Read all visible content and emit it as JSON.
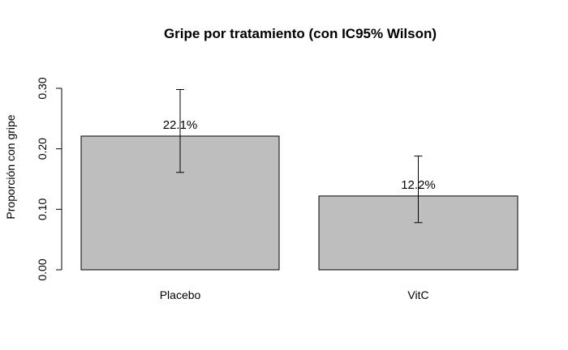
{
  "chart_data": {
    "type": "bar",
    "title": "Gripe por tratamiento (con IC95% Wilson)",
    "xlabel": "",
    "ylabel": "Proporción con gripe",
    "ylim": [
      0,
      0.3
    ],
    "yticks": [
      0.0,
      0.1,
      0.2,
      0.3
    ],
    "ytick_labels": [
      "0.00",
      "0.10",
      "0.20",
      "0.30"
    ],
    "categories": [
      "Placebo",
      "VitC"
    ],
    "values": [
      0.221,
      0.122
    ],
    "ci_lower": [
      0.161,
      0.078
    ],
    "ci_upper": [
      0.298,
      0.188
    ],
    "data_labels": [
      "22.1%",
      "12.2%"
    ],
    "bar_color": "#bebebe",
    "grid": false,
    "legend": "none"
  }
}
